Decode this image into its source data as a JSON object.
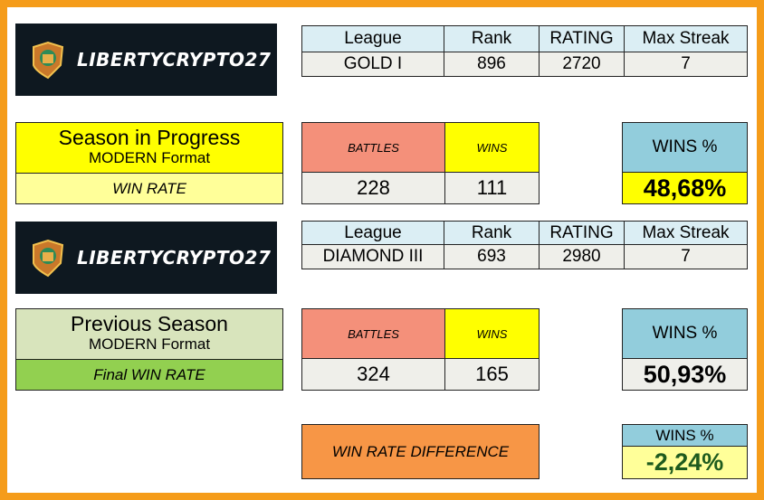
{
  "logo": {
    "text": "LIBERTYCRYPTO27"
  },
  "table_headers": [
    "League",
    "Rank",
    "RATING",
    "Max Streak"
  ],
  "current": {
    "league": "GOLD I",
    "rank": "896",
    "rating": "2720",
    "max_streak": "7",
    "title": "Season in Progress",
    "format": "MODERN Format",
    "winrate_label": "WIN RATE",
    "battles_label": "BATTLES",
    "wins_label": "WINS",
    "battles": "228",
    "wins": "111",
    "wins_pct_label": "WINS %",
    "wins_pct": "48,68%"
  },
  "previous": {
    "league": "DIAMOND III",
    "rank": "693",
    "rating": "2980",
    "max_streak": "7",
    "title": "Previous Season",
    "format": "MODERN Format",
    "winrate_label": "Final WIN RATE",
    "battles_label": "BATTLES",
    "wins_label": "WINS",
    "battles": "324",
    "wins": "165",
    "wins_pct_label": "WINS %",
    "wins_pct": "50,93%"
  },
  "difference": {
    "label": "WIN RATE DIFFERENCE",
    "wins_pct_label": "WINS %",
    "value": "-2,24%"
  },
  "colors": {
    "border": "#f59c1a",
    "logo_bg": "#0e1820",
    "header_blue": "#dbeef4",
    "salmon": "#f4907a",
    "yellow": "#ffff00",
    "light_yellow": "#ffff99",
    "sky": "#92cddc",
    "light_green": "#d8e4bc",
    "green": "#92d050",
    "orange": "#f79646",
    "diff_value": "#1e5b1e"
  }
}
